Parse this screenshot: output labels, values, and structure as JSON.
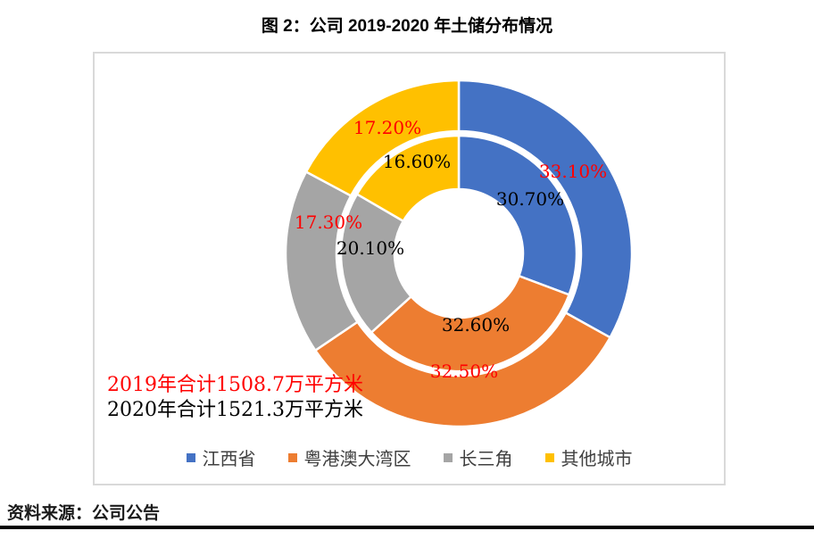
{
  "title": "图 2：公司 2019-2020 年土储分布情况",
  "source": "资料来源：公司公告",
  "annotations": {
    "total_2019": "2019年合计1508.7万平方米",
    "total_2020": "2020年合计1521.3万平方米"
  },
  "colors": {
    "red_label": "#ff0000",
    "black_label": "#000000",
    "chart_border": "#d9d9d9",
    "bottom_rule": "#000000"
  },
  "chart_data": {
    "type": "pie",
    "subtype": "double-ring-donut",
    "title": "图 2：公司 2019-2020 年土储分布情况",
    "categories": [
      "江西省",
      "粤港澳大湾区",
      "长三角",
      "其他城市"
    ],
    "segment_colors": [
      "#4472C4",
      "#ED7D31",
      "#A5A5A5",
      "#FFC000"
    ],
    "series": [
      {
        "name": "2019",
        "ring": "outer",
        "label_color": "#ff0000",
        "values": [
          33.1,
          32.5,
          17.3,
          17.2
        ],
        "labels": [
          "33.10%",
          "32.50%",
          "17.30%",
          "17.20%"
        ],
        "total_text": "2019年合计1508.7万平方米"
      },
      {
        "name": "2020",
        "ring": "inner",
        "label_color": "#000000",
        "values": [
          30.7,
          32.6,
          20.1,
          16.6
        ],
        "labels": [
          "30.70%",
          "32.60%",
          "20.10%",
          "16.60%"
        ],
        "total_text": "2020年合计1521.3万平方米"
      }
    ],
    "start_angle_deg": 0,
    "direction": "clockwise",
    "legend": [
      "江西省",
      "粤港澳大湾区",
      "长三角",
      "其他城市"
    ],
    "legend_position": "bottom",
    "source": "资料来源：公司公告"
  }
}
